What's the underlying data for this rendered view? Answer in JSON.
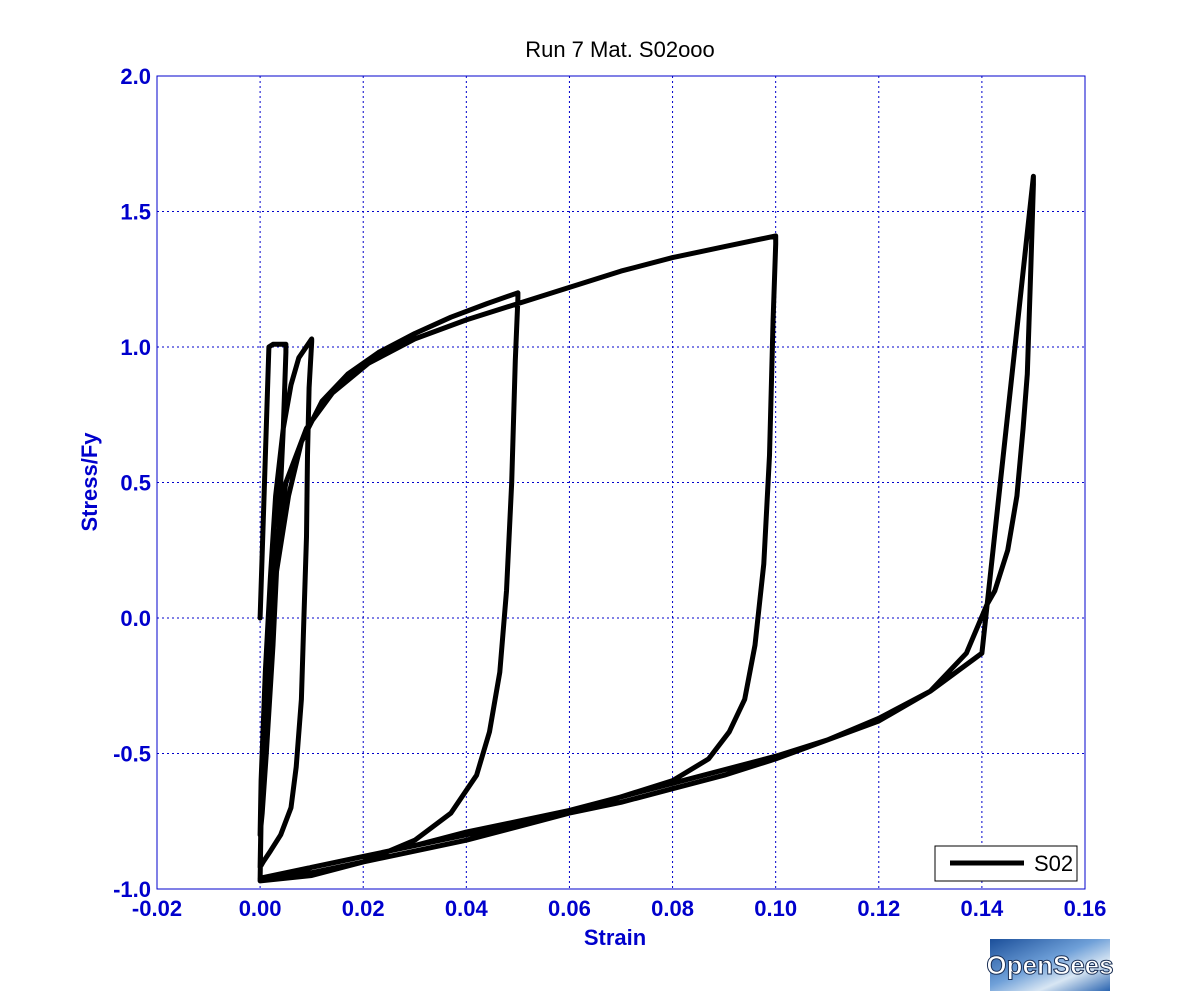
{
  "chart_data": {
    "type": "line",
    "title": "Run 7    Mat. S02ooo",
    "xlabel": "Strain",
    "ylabel": "Stress/Fy",
    "xlim": [
      -0.02,
      0.16
    ],
    "ylim": [
      -1.0,
      2.0
    ],
    "xticks": [
      -0.02,
      0.0,
      0.02,
      0.04,
      0.06,
      0.08,
      0.1,
      0.12,
      0.14,
      0.16
    ],
    "xtick_labels": [
      "-0.02",
      "0.00",
      "0.02",
      "0.04",
      "0.06",
      "0.08",
      "0.10",
      "0.12",
      "0.14",
      "0.16"
    ],
    "yticks": [
      -1.0,
      -0.5,
      0.0,
      0.5,
      1.0,
      1.5,
      2.0
    ],
    "ytick_labels": [
      "-1.0",
      "-0.5",
      "0.0",
      "0.5",
      "1.0",
      "1.5",
      "2.0"
    ],
    "grid": true,
    "legend_position": "bottom-right",
    "series": [
      {
        "name": "S02",
        "color": "#000000",
        "x": [
          0.0,
          0.0017,
          0.0025,
          0.005,
          0.005,
          0.0045,
          0.0035,
          0.0025,
          0.0012,
          0.0004,
          0.0,
          0.0002,
          0.001,
          0.002,
          0.003,
          0.0045,
          0.006,
          0.0075,
          0.01,
          0.01,
          0.0095,
          0.0092,
          0.009,
          0.0085,
          0.008,
          0.007,
          0.006,
          0.004,
          0.002,
          0.0006,
          0.0,
          0.0003,
          0.0012,
          0.003,
          0.0055,
          0.008,
          0.012,
          0.017,
          0.023,
          0.03,
          0.037,
          0.044,
          0.05,
          0.05,
          0.0495,
          0.0488,
          0.0478,
          0.0465,
          0.0445,
          0.042,
          0.037,
          0.03,
          0.02,
          0.01,
          0.0,
          0.0003,
          0.001,
          0.0025,
          0.005,
          0.009,
          0.014,
          0.021,
          0.03,
          0.04,
          0.05,
          0.06,
          0.07,
          0.08,
          0.09,
          0.1,
          0.1,
          0.0995,
          0.0988,
          0.0977,
          0.096,
          0.094,
          0.091,
          0.087,
          0.08,
          0.07,
          0.06,
          0.05,
          0.04,
          0.03,
          0.02,
          0.01,
          0.0,
          0.003,
          0.01,
          0.02,
          0.03,
          0.04,
          0.05,
          0.06,
          0.07,
          0.08,
          0.09,
          0.1,
          0.11,
          0.12,
          0.13,
          0.14,
          0.15,
          0.15,
          0.1495,
          0.1488,
          0.148,
          0.1468,
          0.145,
          0.1425,
          0.141,
          0.137,
          0.13,
          0.12,
          0.11,
          0.1,
          0.09,
          0.08,
          0.07,
          0.06,
          0.05,
          0.04,
          0.03,
          0.02,
          0.01,
          0.0
        ],
        "y": [
          0.0,
          1.0,
          1.01,
          1.01,
          0.98,
          0.7,
          0.3,
          -0.1,
          -0.5,
          -0.72,
          -0.8,
          -0.6,
          -0.2,
          0.15,
          0.45,
          0.7,
          0.86,
          0.96,
          1.03,
          1.02,
          0.85,
          0.6,
          0.3,
          0.0,
          -0.3,
          -0.55,
          -0.7,
          -0.8,
          -0.86,
          -0.9,
          -0.92,
          -0.6,
          -0.2,
          0.15,
          0.45,
          0.65,
          0.8,
          0.9,
          0.98,
          1.05,
          1.11,
          1.16,
          1.2,
          1.18,
          0.95,
          0.5,
          0.1,
          -0.2,
          -0.42,
          -0.58,
          -0.72,
          -0.82,
          -0.9,
          -0.95,
          -0.97,
          -0.6,
          -0.2,
          0.2,
          0.5,
          0.7,
          0.83,
          0.94,
          1.03,
          1.1,
          1.16,
          1.22,
          1.28,
          1.33,
          1.37,
          1.41,
          1.38,
          1.1,
          0.6,
          0.2,
          -0.1,
          -0.3,
          -0.42,
          -0.52,
          -0.6,
          -0.66,
          -0.72,
          -0.77,
          -0.82,
          -0.86,
          -0.9,
          -0.94,
          -0.97,
          -0.96,
          -0.92,
          -0.88,
          -0.84,
          -0.8,
          -0.76,
          -0.72,
          -0.68,
          -0.63,
          -0.58,
          -0.52,
          -0.45,
          -0.37,
          -0.27,
          -0.13,
          1.63,
          1.6,
          1.3,
          0.9,
          0.7,
          0.45,
          0.25,
          0.1,
          0.05,
          -0.13,
          -0.27,
          -0.38,
          -0.45,
          -0.51,
          -0.56,
          -0.61,
          -0.66,
          -0.71,
          -0.75,
          -0.79,
          -0.84,
          -0.88,
          -0.92,
          -0.96
        ]
      }
    ]
  },
  "logo": {
    "text": "OpenSees"
  }
}
